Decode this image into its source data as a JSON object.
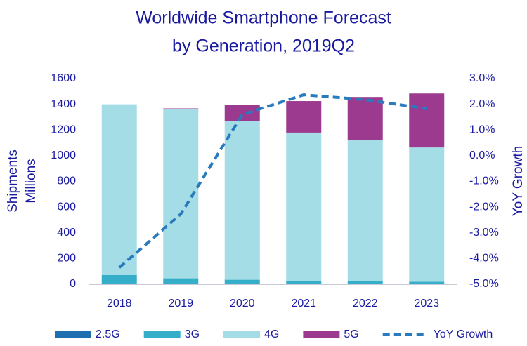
{
  "chart_data": {
    "type": "bar",
    "stacked": true,
    "title": [
      "Worldwide Smartphone Forecast",
      "by Generation, 2019Q2"
    ],
    "ylabel": [
      "Shipments",
      "Millions"
    ],
    "y2label": "YoY Growth",
    "categories": [
      "2018",
      "2019",
      "2020",
      "2021",
      "2022",
      "2023"
    ],
    "series": [
      {
        "name": "2.5G",
        "color": "#1f6fb0",
        "values": [
          2,
          1,
          1,
          1,
          1,
          1
        ]
      },
      {
        "name": "3G",
        "color": "#35aec9",
        "values": [
          70,
          45,
          34,
          26,
          22,
          18
        ]
      },
      {
        "name": "4G",
        "color": "#a4dde6",
        "values": [
          1328,
          1314,
          1233,
          1153,
          1101,
          1045
        ]
      },
      {
        "name": "5G",
        "color": "#9b3a8e",
        "values": [
          0,
          8,
          125,
          245,
          333,
          420
        ]
      },
      {
        "name": "YoY Growth",
        "color": "#2a7abf",
        "type": "line",
        "axis": "y2",
        "values": [
          -4.35,
          -2.27,
          1.6,
          2.37,
          2.18,
          1.83
        ]
      }
    ],
    "ylim": [
      0,
      1600
    ],
    "yticks": [
      0,
      200,
      400,
      600,
      800,
      1000,
      1200,
      1400,
      1600
    ],
    "y2lim": [
      -5,
      3
    ],
    "y2ticks": [
      {
        "value": -5,
        "label": "-5.0%"
      },
      {
        "value": -4,
        "label": "-4.0%"
      },
      {
        "value": -3,
        "label": "-3.0%"
      },
      {
        "value": -2,
        "label": "-2.0%"
      },
      {
        "value": -1,
        "label": "-1.0%"
      },
      {
        "value": 0,
        "label": "0.0%"
      },
      {
        "value": 1,
        "label": "1.0%"
      },
      {
        "value": 2,
        "label": "2.0%"
      },
      {
        "value": 3,
        "label": "3.0%"
      }
    ],
    "legend": "bottom"
  }
}
